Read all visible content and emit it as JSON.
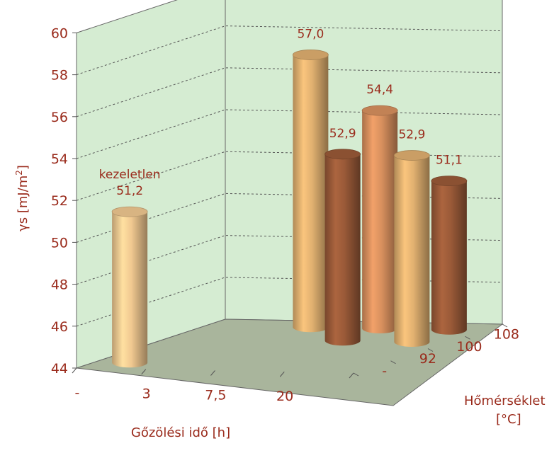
{
  "chart_data": {
    "type": "bar",
    "style": "3d-cylinder",
    "y_axis": {
      "label_prefix": "γs [mJ/m",
      "label_sup": "2",
      "label_suffix": "]",
      "ticks": [
        "44",
        "46",
        "48",
        "50",
        "52",
        "54",
        "56",
        "58",
        "60"
      ],
      "ylim": [
        44,
        60
      ]
    },
    "x_axis": {
      "label": "Gőzölési idő [h]",
      "categories": [
        "-",
        "3",
        "7,5",
        "20"
      ]
    },
    "depth_axis": {
      "label_line1": "Hőmérséklet",
      "label_line2": "[°C]",
      "categories": [
        "-",
        "92",
        "100",
        "108"
      ]
    },
    "points": [
      {
        "time": "-",
        "temperature": "-",
        "value": 51.2,
        "label": "51,2",
        "note": "kezeletlen",
        "color": "#f0c890"
      },
      {
        "time": "3",
        "temperature": "108",
        "value": 57.0,
        "label": "57,0",
        "color": "#e0b070"
      },
      {
        "time": "7,5",
        "temperature": "100",
        "value": 52.9,
        "label": "52,9",
        "color": "#9a5a38"
      },
      {
        "time": "7,5",
        "temperature": "108",
        "value": 54.4,
        "label": "54,4",
        "color": "#d8905e"
      },
      {
        "time": "20",
        "temperature": "100",
        "value": 52.9,
        "label": "52,9",
        "color": "#e0b070"
      },
      {
        "time": "20",
        "temperature": "108",
        "value": 51.1,
        "label": "51,1",
        "color": "#9a5a38"
      }
    ],
    "grid": true,
    "colors": {
      "text": "#9a2b1c",
      "wall": "#d5ecd2",
      "floor": "#a9b59c",
      "gridline": "#555555"
    }
  }
}
